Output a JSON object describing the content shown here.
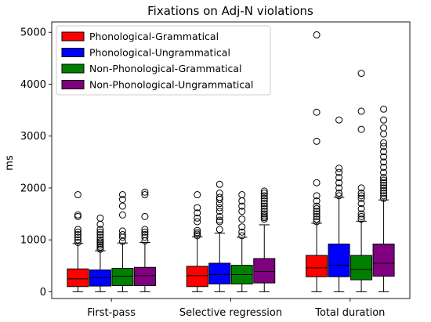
{
  "chart_data": {
    "type": "box",
    "title": "Fixations on Adj-N violations",
    "xlabel": "",
    "ylabel": "ms",
    "ylim": [
      -130,
      5200
    ],
    "yticks": [
      0,
      1000,
      2000,
      3000,
      4000,
      5000
    ],
    "ytick_labels": [
      "0",
      "1000",
      "2000",
      "3000",
      "4000",
      "5000"
    ],
    "categories": [
      "First-pass",
      "Selective regression",
      "Total duration"
    ],
    "grid": false,
    "legend_position": "top-left",
    "series": [
      {
        "name": "Phonological-Grammatical",
        "color": "#ff0000",
        "boxes": [
          {
            "whislo": 0,
            "q1": 100,
            "med": 250,
            "q3": 440,
            "whishi": 930,
            "fliers": [
              950,
              1000,
              1050,
              1100,
              1150,
              1200,
              1450,
              1480,
              1870
            ]
          },
          {
            "whislo": 0,
            "q1": 100,
            "med": 310,
            "q3": 490,
            "whishi": 1060,
            "fliers": [
              1080,
              1110,
              1140,
              1180,
              1350,
              1420,
              1520,
              1620,
              1870
            ]
          },
          {
            "whislo": 0,
            "q1": 290,
            "med": 460,
            "q3": 700,
            "whishi": 1320,
            "fliers": [
              1350,
              1400,
              1450,
              1500,
              1550,
              1600,
              1650,
              1750,
              1850,
              2100,
              2900,
              3460,
              4950
            ]
          }
        ]
      },
      {
        "name": "Phonological-Ungrammatical",
        "color": "#0000ff",
        "boxes": [
          {
            "whislo": 0,
            "q1": 110,
            "med": 270,
            "q3": 420,
            "whishi": 790,
            "fliers": [
              820,
              860,
              900,
              930,
              960,
              1000,
              1050,
              1100,
              1150,
              1200,
              1300,
              1420
            ]
          },
          {
            "whislo": 0,
            "q1": 150,
            "med": 330,
            "q3": 550,
            "whishi": 1130,
            "fliers": [
              1200,
              1350,
              1380,
              1450,
              1550,
              1620,
              1700,
              1780,
              1820,
              1900,
              2070
            ]
          },
          {
            "whislo": 0,
            "q1": 290,
            "med": 510,
            "q3": 920,
            "whishi": 1820,
            "fliers": [
              1850,
              1900,
              2000,
              2100,
              2200,
              2300,
              2380,
              3310
            ]
          }
        ]
      },
      {
        "name": "Non-Phonological-Grammatical",
        "color": "#008000",
        "boxes": [
          {
            "whislo": 0,
            "q1": 120,
            "med": 300,
            "q3": 450,
            "whishi": 940,
            "fliers": [
              970,
              1050,
              1100,
              1170,
              1480,
              1650,
              1780,
              1870
            ]
          },
          {
            "whislo": 0,
            "q1": 150,
            "med": 330,
            "q3": 510,
            "whishi": 1050,
            "fliers": [
              1080,
              1150,
              1250,
              1400,
              1550,
              1650,
              1750,
              1870
            ]
          },
          {
            "whislo": 0,
            "q1": 230,
            "med": 430,
            "q3": 700,
            "whishi": 1360,
            "fliers": [
              1400,
              1450,
              1500,
              1600,
              1700,
              1800,
              1850,
              1900,
              2000,
              3130,
              3480,
              4210
            ]
          }
        ]
      },
      {
        "name": "Non-Phonological-Ungrammatical",
        "color": "#800080",
        "boxes": [
          {
            "whislo": 0,
            "q1": 120,
            "med": 310,
            "q3": 470,
            "whishi": 950,
            "fliers": [
              980,
              1050,
              1100,
              1150,
              1200,
              1450,
              1870,
              1920
            ]
          },
          {
            "whislo": 0,
            "q1": 170,
            "med": 390,
            "q3": 640,
            "whishi": 1290,
            "fliers": [
              1400,
              1430,
              1460,
              1500,
              1550,
              1600,
              1650,
              1700,
              1750,
              1800,
              1850,
              1900,
              1940
            ]
          },
          {
            "whislo": 0,
            "q1": 300,
            "med": 550,
            "q3": 920,
            "whishi": 1770,
            "fliers": [
              1800,
              1850,
              1900,
              1950,
              2000,
              2050,
              2100,
              2150,
              2200,
              2300,
              2400,
              2500,
              2600,
              2700,
              2800,
              2870,
              3040,
              3160,
              3310,
              3520
            ]
          }
        ]
      }
    ]
  }
}
